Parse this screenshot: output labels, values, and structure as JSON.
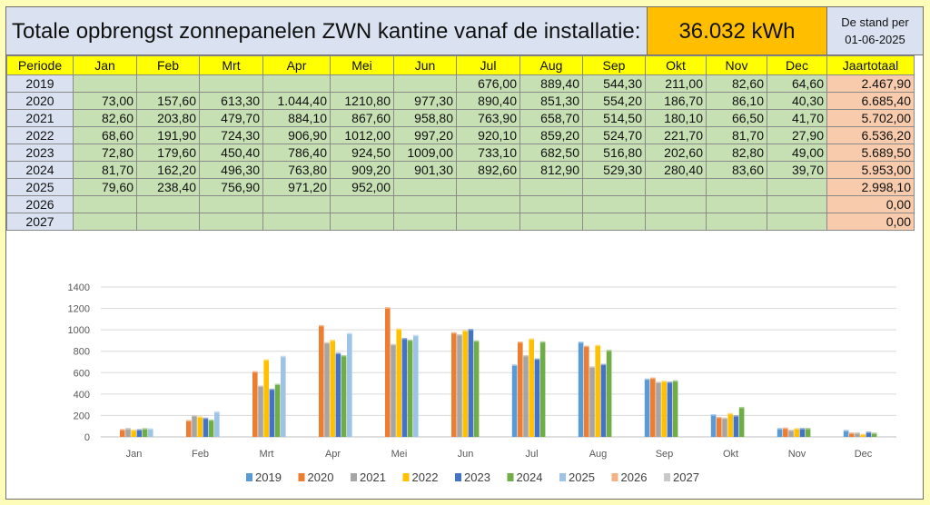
{
  "title": "Totale opbrengst zonnepanelen ZWN kantine vanaf de installatie:",
  "total_kwh": "36.032  kWh",
  "stand_label": "De stand per",
  "stand_date": "01-06-2025",
  "headers": [
    "Periode",
    "Jan",
    "Feb",
    "Mrt",
    "Apr",
    "Mei",
    "Jun",
    "Jul",
    "Aug",
    "Sep",
    "Okt",
    "Nov",
    "Dec",
    "Jaartotaal"
  ],
  "rows": [
    [
      "2019",
      "",
      "",
      "",
      "",
      "",
      "",
      "676,00",
      "889,40",
      "544,30",
      "211,00",
      "82,60",
      "64,60",
      "2.467,90"
    ],
    [
      "2020",
      "73,00",
      "157,60",
      "613,30",
      "1.044,40",
      "1210,80",
      "977,30",
      "890,40",
      "851,30",
      "554,20",
      "186,70",
      "86,10",
      "40,30",
      "6.685,40"
    ],
    [
      "2021",
      "82,60",
      "203,80",
      "479,70",
      "884,10",
      "867,60",
      "958,80",
      "763,90",
      "658,70",
      "514,50",
      "180,10",
      "66,50",
      "41,70",
      "5.702,00"
    ],
    [
      "2022",
      "68,60",
      "191,90",
      "724,30",
      "906,90",
      "1012,00",
      "997,20",
      "920,10",
      "859,20",
      "524,70",
      "221,70",
      "81,70",
      "27,90",
      "6.536,20"
    ],
    [
      "2023",
      "72,80",
      "179,60",
      "450,40",
      "786,40",
      "924,50",
      "1009,00",
      "733,10",
      "682,50",
      "516,80",
      "202,60",
      "82,80",
      "49,00",
      "5.689,50"
    ],
    [
      "2024",
      "81,70",
      "162,20",
      "496,30",
      "763,80",
      "909,20",
      "901,30",
      "892,60",
      "812,90",
      "529,30",
      "280,40",
      "83,60",
      "39,70",
      "5.953,00"
    ],
    [
      "2025",
      "79,60",
      "238,40",
      "756,90",
      "971,20",
      "952,00",
      "",
      "",
      "",
      "",
      "",
      "",
      "",
      "2.998,10"
    ],
    [
      "2026",
      "",
      "",
      "",
      "",
      "",
      "",
      "",
      "",
      "",
      "",
      "",
      "",
      "0,00"
    ],
    [
      "2027",
      "",
      "",
      "",
      "",
      "",
      "",
      "",
      "",
      "",
      "",
      "",
      "",
      "0,00"
    ]
  ],
  "chart_data": {
    "type": "bar",
    "categories": [
      "Jan",
      "Feb",
      "Mrt",
      "Apr",
      "Mei",
      "Jun",
      "Jul",
      "Aug",
      "Sep",
      "Okt",
      "Nov",
      "Dec"
    ],
    "ylim": [
      0,
      1400
    ],
    "yticks": [
      "0",
      "200",
      "400",
      "600",
      "800",
      "1000",
      "1200",
      "1400"
    ],
    "legend_position": "bottom",
    "series": [
      {
        "name": "2019",
        "color": "#5b9bd5",
        "values": [
          null,
          null,
          null,
          null,
          null,
          null,
          676.0,
          889.4,
          544.3,
          211.0,
          82.6,
          64.6
        ]
      },
      {
        "name": "2020",
        "color": "#ed7d31",
        "values": [
          73.0,
          157.6,
          613.3,
          1044.4,
          1210.8,
          977.3,
          890.4,
          851.3,
          554.2,
          186.7,
          86.1,
          40.3
        ]
      },
      {
        "name": "2021",
        "color": "#a5a5a5",
        "values": [
          82.6,
          203.8,
          479.7,
          884.1,
          867.6,
          958.8,
          763.9,
          658.7,
          514.5,
          180.1,
          66.5,
          41.7
        ]
      },
      {
        "name": "2022",
        "color": "#ffc000",
        "values": [
          68.6,
          191.9,
          724.3,
          906.9,
          1012.0,
          997.2,
          920.1,
          859.2,
          524.7,
          221.7,
          81.7,
          27.9
        ]
      },
      {
        "name": "2023",
        "color": "#4472c4",
        "values": [
          72.8,
          179.6,
          450.4,
          786.4,
          924.5,
          1009.0,
          733.1,
          682.5,
          516.8,
          202.6,
          82.8,
          49.0
        ]
      },
      {
        "name": "2024",
        "color": "#70ad47",
        "values": [
          81.7,
          162.2,
          496.3,
          763.8,
          909.2,
          901.3,
          892.6,
          812.9,
          529.3,
          280.4,
          83.6,
          39.7
        ]
      },
      {
        "name": "2025",
        "color": "#9dc3e6",
        "values": [
          79.6,
          238.4,
          756.9,
          971.2,
          952.0,
          null,
          null,
          null,
          null,
          null,
          null,
          null
        ]
      },
      {
        "name": "2026",
        "color": "#f4b183",
        "values": [
          null,
          null,
          null,
          null,
          null,
          null,
          null,
          null,
          null,
          null,
          null,
          null
        ]
      },
      {
        "name": "2027",
        "color": "#c9c9c9",
        "values": [
          null,
          null,
          null,
          null,
          null,
          null,
          null,
          null,
          null,
          null,
          null,
          null
        ]
      }
    ]
  }
}
